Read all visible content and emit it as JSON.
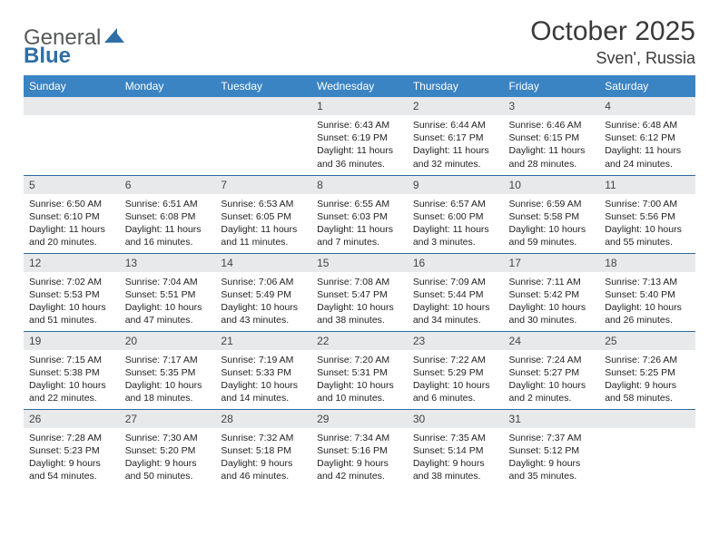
{
  "logo": {
    "brand1": "General",
    "brand2": "Blue"
  },
  "title": "October 2025",
  "location": "Sven', Russia",
  "colors": {
    "header_bg": "#3b84c4",
    "header_text": "#ffffff",
    "daynum_bg": "#e8e9ea",
    "row_divider": "#2b6aa3",
    "logo_grey": "#58595b",
    "logo_blue": "#2f6fa6",
    "text": "#222222"
  },
  "weekdays": [
    "Sunday",
    "Monday",
    "Tuesday",
    "Wednesday",
    "Thursday",
    "Friday",
    "Saturday"
  ],
  "first_weekday_index": 3,
  "days": [
    {
      "n": "1",
      "sunrise": "Sunrise: 6:43 AM",
      "sunset": "Sunset: 6:19 PM",
      "day1": "Daylight: 11 hours",
      "day2": "and 36 minutes."
    },
    {
      "n": "2",
      "sunrise": "Sunrise: 6:44 AM",
      "sunset": "Sunset: 6:17 PM",
      "day1": "Daylight: 11 hours",
      "day2": "and 32 minutes."
    },
    {
      "n": "3",
      "sunrise": "Sunrise: 6:46 AM",
      "sunset": "Sunset: 6:15 PM",
      "day1": "Daylight: 11 hours",
      "day2": "and 28 minutes."
    },
    {
      "n": "4",
      "sunrise": "Sunrise: 6:48 AM",
      "sunset": "Sunset: 6:12 PM",
      "day1": "Daylight: 11 hours",
      "day2": "and 24 minutes."
    },
    {
      "n": "5",
      "sunrise": "Sunrise: 6:50 AM",
      "sunset": "Sunset: 6:10 PM",
      "day1": "Daylight: 11 hours",
      "day2": "and 20 minutes."
    },
    {
      "n": "6",
      "sunrise": "Sunrise: 6:51 AM",
      "sunset": "Sunset: 6:08 PM",
      "day1": "Daylight: 11 hours",
      "day2": "and 16 minutes."
    },
    {
      "n": "7",
      "sunrise": "Sunrise: 6:53 AM",
      "sunset": "Sunset: 6:05 PM",
      "day1": "Daylight: 11 hours",
      "day2": "and 11 minutes."
    },
    {
      "n": "8",
      "sunrise": "Sunrise: 6:55 AM",
      "sunset": "Sunset: 6:03 PM",
      "day1": "Daylight: 11 hours",
      "day2": "and 7 minutes."
    },
    {
      "n": "9",
      "sunrise": "Sunrise: 6:57 AM",
      "sunset": "Sunset: 6:00 PM",
      "day1": "Daylight: 11 hours",
      "day2": "and 3 minutes."
    },
    {
      "n": "10",
      "sunrise": "Sunrise: 6:59 AM",
      "sunset": "Sunset: 5:58 PM",
      "day1": "Daylight: 10 hours",
      "day2": "and 59 minutes."
    },
    {
      "n": "11",
      "sunrise": "Sunrise: 7:00 AM",
      "sunset": "Sunset: 5:56 PM",
      "day1": "Daylight: 10 hours",
      "day2": "and 55 minutes."
    },
    {
      "n": "12",
      "sunrise": "Sunrise: 7:02 AM",
      "sunset": "Sunset: 5:53 PM",
      "day1": "Daylight: 10 hours",
      "day2": "and 51 minutes."
    },
    {
      "n": "13",
      "sunrise": "Sunrise: 7:04 AM",
      "sunset": "Sunset: 5:51 PM",
      "day1": "Daylight: 10 hours",
      "day2": "and 47 minutes."
    },
    {
      "n": "14",
      "sunrise": "Sunrise: 7:06 AM",
      "sunset": "Sunset: 5:49 PM",
      "day1": "Daylight: 10 hours",
      "day2": "and 43 minutes."
    },
    {
      "n": "15",
      "sunrise": "Sunrise: 7:08 AM",
      "sunset": "Sunset: 5:47 PM",
      "day1": "Daylight: 10 hours",
      "day2": "and 38 minutes."
    },
    {
      "n": "16",
      "sunrise": "Sunrise: 7:09 AM",
      "sunset": "Sunset: 5:44 PM",
      "day1": "Daylight: 10 hours",
      "day2": "and 34 minutes."
    },
    {
      "n": "17",
      "sunrise": "Sunrise: 7:11 AM",
      "sunset": "Sunset: 5:42 PM",
      "day1": "Daylight: 10 hours",
      "day2": "and 30 minutes."
    },
    {
      "n": "18",
      "sunrise": "Sunrise: 7:13 AM",
      "sunset": "Sunset: 5:40 PM",
      "day1": "Daylight: 10 hours",
      "day2": "and 26 minutes."
    },
    {
      "n": "19",
      "sunrise": "Sunrise: 7:15 AM",
      "sunset": "Sunset: 5:38 PM",
      "day1": "Daylight: 10 hours",
      "day2": "and 22 minutes."
    },
    {
      "n": "20",
      "sunrise": "Sunrise: 7:17 AM",
      "sunset": "Sunset: 5:35 PM",
      "day1": "Daylight: 10 hours",
      "day2": "and 18 minutes."
    },
    {
      "n": "21",
      "sunrise": "Sunrise: 7:19 AM",
      "sunset": "Sunset: 5:33 PM",
      "day1": "Daylight: 10 hours",
      "day2": "and 14 minutes."
    },
    {
      "n": "22",
      "sunrise": "Sunrise: 7:20 AM",
      "sunset": "Sunset: 5:31 PM",
      "day1": "Daylight: 10 hours",
      "day2": "and 10 minutes."
    },
    {
      "n": "23",
      "sunrise": "Sunrise: 7:22 AM",
      "sunset": "Sunset: 5:29 PM",
      "day1": "Daylight: 10 hours",
      "day2": "and 6 minutes."
    },
    {
      "n": "24",
      "sunrise": "Sunrise: 7:24 AM",
      "sunset": "Sunset: 5:27 PM",
      "day1": "Daylight: 10 hours",
      "day2": "and 2 minutes."
    },
    {
      "n": "25",
      "sunrise": "Sunrise: 7:26 AM",
      "sunset": "Sunset: 5:25 PM",
      "day1": "Daylight: 9 hours",
      "day2": "and 58 minutes."
    },
    {
      "n": "26",
      "sunrise": "Sunrise: 7:28 AM",
      "sunset": "Sunset: 5:23 PM",
      "day1": "Daylight: 9 hours",
      "day2": "and 54 minutes."
    },
    {
      "n": "27",
      "sunrise": "Sunrise: 7:30 AM",
      "sunset": "Sunset: 5:20 PM",
      "day1": "Daylight: 9 hours",
      "day2": "and 50 minutes."
    },
    {
      "n": "28",
      "sunrise": "Sunrise: 7:32 AM",
      "sunset": "Sunset: 5:18 PM",
      "day1": "Daylight: 9 hours",
      "day2": "and 46 minutes."
    },
    {
      "n": "29",
      "sunrise": "Sunrise: 7:34 AM",
      "sunset": "Sunset: 5:16 PM",
      "day1": "Daylight: 9 hours",
      "day2": "and 42 minutes."
    },
    {
      "n": "30",
      "sunrise": "Sunrise: 7:35 AM",
      "sunset": "Sunset: 5:14 PM",
      "day1": "Daylight: 9 hours",
      "day2": "and 38 minutes."
    },
    {
      "n": "31",
      "sunrise": "Sunrise: 7:37 AM",
      "sunset": "Sunset: 5:12 PM",
      "day1": "Daylight: 9 hours",
      "day2": "and 35 minutes."
    }
  ]
}
